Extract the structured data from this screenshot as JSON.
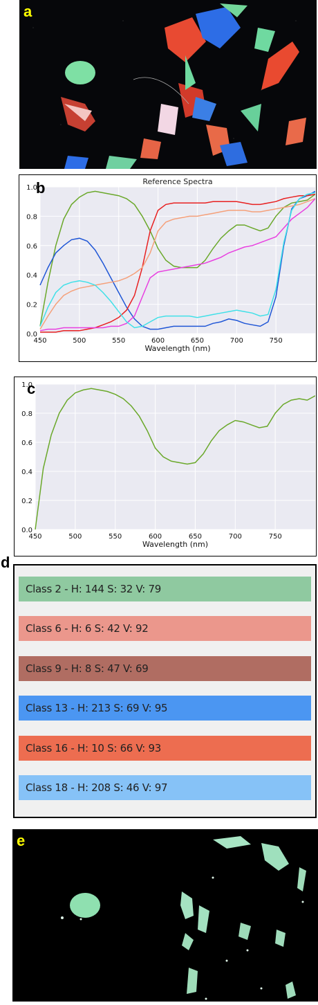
{
  "panels": {
    "a": {
      "letter": "a",
      "letter_color": "#ffff00"
    },
    "b": {
      "letter": "b",
      "letter_color": "#000000"
    },
    "c": {
      "letter": "c",
      "letter_color": "#000000"
    },
    "d": {
      "letter": "d",
      "letter_color": "#000000"
    },
    "e": {
      "letter": "e",
      "letter_color": "#ffff00"
    }
  },
  "class_list": [
    {
      "label": "Class 2 - H: 144 S: 32 V: 79",
      "color": "#8fc9a0"
    },
    {
      "label": "Class 6 - H: 6 S: 42 V: 92",
      "color": "#eb978c"
    },
    {
      "label": "Class 9 - H: 8 S: 47 V: 69",
      "color": "#b06d62"
    },
    {
      "label": "Class 13 - H: 213 S: 69 V: 95",
      "color": "#4b96f2"
    },
    {
      "label": "Class 16 - H: 10 S: 66 V: 93",
      "color": "#ed6d50"
    },
    {
      "label": "Class 18 - H: 208 S: 46 V: 97",
      "color": "#86c2f7"
    }
  ],
  "chart_data": [
    {
      "type": "line",
      "title": "Reference Spectra",
      "xlabel": "Wavelength (nm)",
      "ylabel": "",
      "xlim": [
        450,
        800
      ],
      "ylim": [
        0,
        1.0
      ],
      "xticks": [
        450,
        500,
        550,
        600,
        650,
        700,
        750
      ],
      "yticks": [
        "0.0",
        "0.2",
        "0.4",
        "0.6",
        "0.8",
        "1.0"
      ],
      "series": [
        {
          "color": "#6aa82a",
          "x": [
            450,
            460,
            470,
            480,
            490,
            500,
            510,
            520,
            530,
            540,
            550,
            560,
            570,
            580,
            590,
            600,
            610,
            620,
            630,
            640,
            650,
            660,
            670,
            680,
            690,
            700,
            710,
            720,
            730,
            740,
            750,
            760,
            770,
            780,
            790,
            800
          ],
          "y": [
            0.05,
            0.35,
            0.6,
            0.78,
            0.88,
            0.93,
            0.96,
            0.97,
            0.96,
            0.95,
            0.94,
            0.92,
            0.88,
            0.8,
            0.7,
            0.58,
            0.5,
            0.46,
            0.45,
            0.45,
            0.45,
            0.5,
            0.58,
            0.65,
            0.7,
            0.74,
            0.74,
            0.72,
            0.7,
            0.72,
            0.8,
            0.86,
            0.89,
            0.9,
            0.91,
            0.95
          ]
        },
        {
          "color": "#1f56d6",
          "x": [
            450,
            460,
            470,
            480,
            490,
            500,
            510,
            520,
            530,
            540,
            550,
            560,
            570,
            580,
            590,
            600,
            610,
            620,
            630,
            640,
            650,
            660,
            670,
            680,
            690,
            700,
            710,
            720,
            730,
            740,
            750,
            760,
            770,
            780,
            790,
            800
          ],
          "y": [
            0.33,
            0.45,
            0.55,
            0.6,
            0.64,
            0.65,
            0.63,
            0.57,
            0.48,
            0.38,
            0.28,
            0.18,
            0.1,
            0.05,
            0.03,
            0.03,
            0.04,
            0.05,
            0.05,
            0.05,
            0.05,
            0.05,
            0.07,
            0.08,
            0.1,
            0.09,
            0.07,
            0.06,
            0.05,
            0.08,
            0.25,
            0.6,
            0.85,
            0.92,
            0.94,
            0.97
          ]
        },
        {
          "color": "#e82020",
          "x": [
            450,
            460,
            470,
            480,
            490,
            500,
            510,
            520,
            530,
            540,
            550,
            560,
            570,
            580,
            590,
            600,
            610,
            620,
            630,
            640,
            650,
            660,
            670,
            680,
            690,
            700,
            710,
            720,
            730,
            740,
            750,
            760,
            770,
            780,
            790,
            800
          ],
          "y": [
            0.01,
            0.01,
            0.01,
            0.02,
            0.02,
            0.02,
            0.03,
            0.04,
            0.06,
            0.08,
            0.11,
            0.16,
            0.26,
            0.45,
            0.7,
            0.84,
            0.88,
            0.89,
            0.89,
            0.89,
            0.89,
            0.89,
            0.9,
            0.9,
            0.9,
            0.9,
            0.89,
            0.88,
            0.88,
            0.89,
            0.9,
            0.92,
            0.93,
            0.94,
            0.94,
            0.95
          ]
        },
        {
          "color": "#f5a07a",
          "x": [
            450,
            460,
            470,
            480,
            490,
            500,
            510,
            520,
            530,
            540,
            550,
            560,
            570,
            580,
            590,
            600,
            610,
            620,
            630,
            640,
            650,
            660,
            670,
            680,
            690,
            700,
            710,
            720,
            730,
            740,
            750,
            760,
            770,
            780,
            790,
            800
          ],
          "y": [
            0.03,
            0.12,
            0.2,
            0.26,
            0.29,
            0.31,
            0.32,
            0.33,
            0.34,
            0.35,
            0.36,
            0.38,
            0.41,
            0.45,
            0.55,
            0.7,
            0.76,
            0.78,
            0.79,
            0.8,
            0.8,
            0.81,
            0.82,
            0.83,
            0.84,
            0.84,
            0.84,
            0.83,
            0.83,
            0.84,
            0.85,
            0.86,
            0.87,
            0.88,
            0.9,
            0.92
          ]
        },
        {
          "color": "#e83fe0",
          "x": [
            450,
            460,
            470,
            480,
            490,
            500,
            510,
            520,
            530,
            540,
            550,
            560,
            570,
            580,
            590,
            600,
            610,
            620,
            630,
            640,
            650,
            660,
            670,
            680,
            690,
            700,
            710,
            720,
            730,
            740,
            750,
            760,
            770,
            780,
            790,
            800
          ],
          "y": [
            0.02,
            0.03,
            0.03,
            0.04,
            0.04,
            0.04,
            0.04,
            0.04,
            0.04,
            0.05,
            0.05,
            0.07,
            0.12,
            0.25,
            0.38,
            0.42,
            0.43,
            0.44,
            0.45,
            0.46,
            0.47,
            0.48,
            0.5,
            0.52,
            0.55,
            0.57,
            0.59,
            0.6,
            0.62,
            0.64,
            0.66,
            0.72,
            0.78,
            0.82,
            0.86,
            0.92
          ]
        },
        {
          "color": "#40e0e8",
          "x": [
            450,
            460,
            470,
            480,
            490,
            500,
            510,
            520,
            530,
            540,
            550,
            560,
            570,
            580,
            590,
            600,
            610,
            620,
            630,
            640,
            650,
            660,
            670,
            680,
            690,
            700,
            710,
            720,
            730,
            740,
            750,
            760,
            770,
            780,
            790,
            800
          ],
          "y": [
            0.05,
            0.18,
            0.28,
            0.33,
            0.35,
            0.36,
            0.35,
            0.33,
            0.28,
            0.22,
            0.15,
            0.08,
            0.04,
            0.05,
            0.08,
            0.11,
            0.12,
            0.12,
            0.12,
            0.12,
            0.11,
            0.12,
            0.13,
            0.14,
            0.15,
            0.16,
            0.15,
            0.14,
            0.12,
            0.13,
            0.3,
            0.62,
            0.84,
            0.92,
            0.95,
            0.96
          ]
        }
      ]
    },
    {
      "type": "line",
      "title": "",
      "xlabel": "Wavelength (nm)",
      "ylabel": "",
      "xlim": [
        450,
        800
      ],
      "ylim": [
        0,
        1.0
      ],
      "xticks": [
        450,
        500,
        550,
        600,
        650,
        700,
        750
      ],
      "yticks": [
        "0.0",
        "0.2",
        "0.4",
        "0.6",
        "0.8",
        "1.0"
      ],
      "series": [
        {
          "color": "#6aa82a",
          "x": [
            450,
            460,
            470,
            480,
            490,
            500,
            510,
            520,
            530,
            540,
            550,
            560,
            570,
            580,
            590,
            600,
            610,
            620,
            630,
            640,
            650,
            660,
            670,
            680,
            690,
            700,
            710,
            720,
            730,
            740,
            750,
            760,
            770,
            780,
            790,
            800
          ],
          "y": [
            0.0,
            0.42,
            0.65,
            0.8,
            0.89,
            0.94,
            0.96,
            0.97,
            0.96,
            0.95,
            0.93,
            0.9,
            0.85,
            0.78,
            0.68,
            0.56,
            0.5,
            0.47,
            0.46,
            0.45,
            0.46,
            0.52,
            0.61,
            0.68,
            0.72,
            0.75,
            0.74,
            0.72,
            0.7,
            0.71,
            0.8,
            0.86,
            0.89,
            0.9,
            0.89,
            0.92
          ]
        }
      ]
    }
  ]
}
